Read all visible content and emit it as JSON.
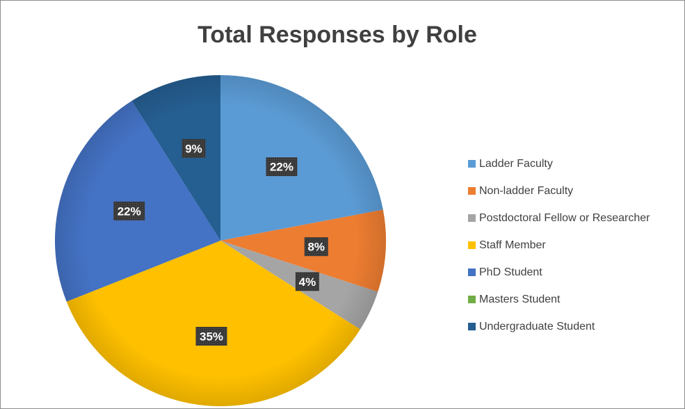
{
  "chart_data": {
    "type": "pie",
    "title": "Total Responses by Role",
    "categories": [
      "Ladder Faculty",
      "Non-ladder Faculty",
      "Postdoctoral Fellow or Researcher",
      "Staff Member",
      "PhD Student",
      "Masters Student",
      "Undergraduate Student"
    ],
    "values": [
      22,
      8,
      4,
      35,
      22,
      0,
      9
    ],
    "labels": [
      "22%",
      "8%",
      "4%",
      "35%",
      "22%",
      "",
      "9%"
    ],
    "colors": [
      "#5b9bd5",
      "#ed7d31",
      "#a5a5a5",
      "#ffc000",
      "#4472c4",
      "#70ad47",
      "#255e91"
    ],
    "legend_position": "right"
  }
}
